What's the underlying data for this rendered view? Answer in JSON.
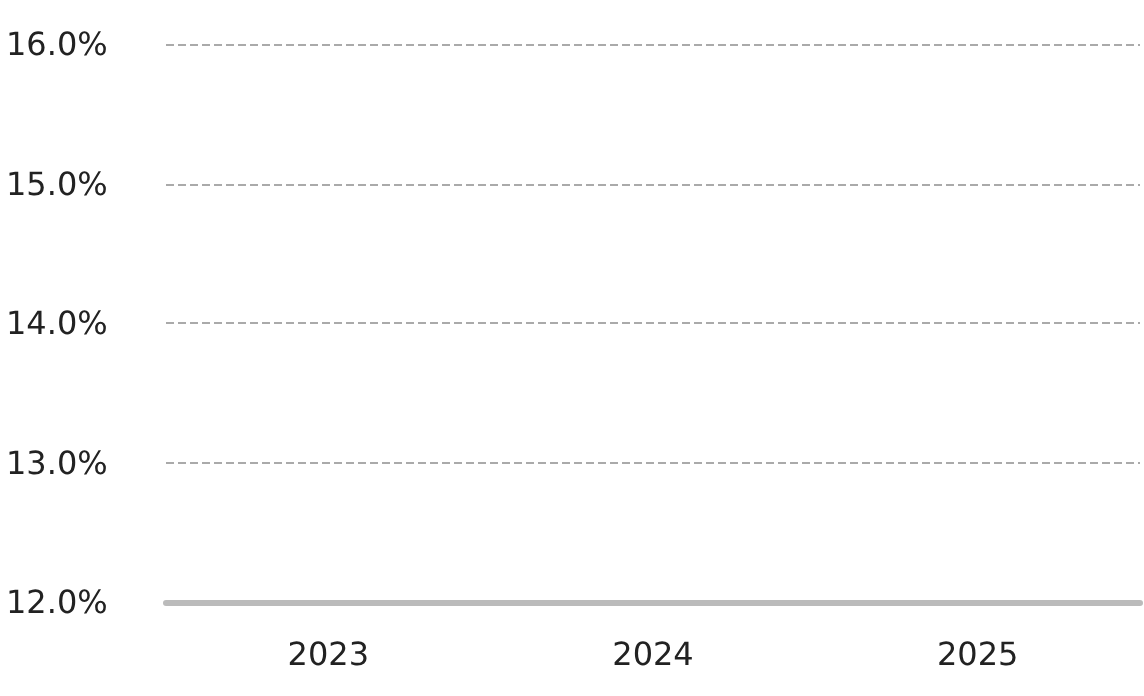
{
  "chart_data": {
    "type": "bar",
    "categories": [
      "2023",
      "2024",
      "2025"
    ],
    "values": [
      null,
      null,
      null
    ],
    "ylim": [
      12,
      16
    ],
    "yticks": [
      {
        "value": 12,
        "label": "12.0%"
      },
      {
        "value": 13,
        "label": "13.0%"
      },
      {
        "value": 14,
        "label": "14.0%"
      },
      {
        "value": 15,
        "label": "15.0%"
      },
      {
        "value": 16,
        "label": "16.0%"
      }
    ],
    "grid": "y"
  }
}
